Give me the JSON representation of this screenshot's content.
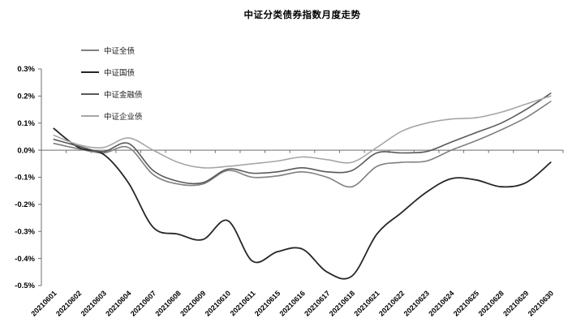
{
  "title": "中证分类债券指数月度走势",
  "legend": [
    {
      "label": "中证全债",
      "color": "#808080"
    },
    {
      "label": "中证国债",
      "color": "#262626"
    },
    {
      "label": "中证金融债",
      "color": "#595959"
    },
    {
      "label": "中证企业债",
      "color": "#a6a6a6"
    }
  ],
  "chart_data": {
    "type": "line",
    "title": "中证分类债券指数月度走势",
    "xlabel": "",
    "ylabel": "",
    "x_categories": [
      "20210601",
      "20210602",
      "20210603",
      "20210604",
      "20210607",
      "20210608",
      "20210609",
      "20210610",
      "20210611",
      "20210615",
      "20210616",
      "20210617",
      "20210618",
      "20210621",
      "20210622",
      "20210623",
      "20210624",
      "20210625",
      "20210628",
      "20210629",
      "20210630"
    ],
    "unit": "percent",
    "series": [
      {
        "name": "中证全债",
        "color": "#808080",
        "width": 1.6,
        "values": [
          0.025,
          0.005,
          -0.01,
          0.01,
          -0.09,
          -0.125,
          -0.125,
          -0.075,
          -0.1,
          -0.095,
          -0.08,
          -0.1,
          -0.135,
          -0.06,
          -0.045,
          -0.04,
          0.0,
          0.035,
          0.075,
          0.12,
          0.18
        ]
      },
      {
        "name": "中证国债",
        "color": "#262626",
        "width": 1.8,
        "values": [
          0.08,
          0.01,
          -0.015,
          -0.12,
          -0.285,
          -0.31,
          -0.33,
          -0.26,
          -0.41,
          -0.375,
          -0.365,
          -0.45,
          -0.465,
          -0.31,
          -0.23,
          -0.155,
          -0.105,
          -0.11,
          -0.135,
          -0.12,
          -0.045
        ]
      },
      {
        "name": "中证金融债",
        "color": "#595959",
        "width": 1.6,
        "values": [
          0.04,
          0.015,
          -0.005,
          0.025,
          -0.075,
          -0.115,
          -0.12,
          -0.07,
          -0.085,
          -0.08,
          -0.065,
          -0.08,
          -0.075,
          -0.01,
          -0.01,
          -0.005,
          0.03,
          0.065,
          0.1,
          0.15,
          0.21
        ]
      },
      {
        "name": "中证企业债",
        "color": "#a6a6a6",
        "width": 1.6,
        "values": [
          0.055,
          0.02,
          0.01,
          0.045,
          0.0,
          -0.045,
          -0.065,
          -0.06,
          -0.05,
          -0.04,
          -0.025,
          -0.035,
          -0.045,
          0.01,
          0.07,
          0.1,
          0.115,
          0.12,
          0.14,
          0.17,
          0.2
        ]
      }
    ],
    "ylim": [
      -0.5,
      0.3
    ],
    "y_ticks": [
      "0.3%",
      "0.2%",
      "0.1%",
      "0.0%",
      "-0.1%",
      "-0.2%",
      "-0.3%",
      "-0.4%",
      "-0.5%"
    ],
    "y_tick_values": [
      0.3,
      0.2,
      0.1,
      0.0,
      -0.1,
      -0.2,
      -0.3,
      -0.4,
      -0.5
    ],
    "grid": "off",
    "smooth": true,
    "legend_position": "top-left-overlay",
    "axis_color": "#6e6e6e",
    "tick_label_color": "#000000"
  }
}
